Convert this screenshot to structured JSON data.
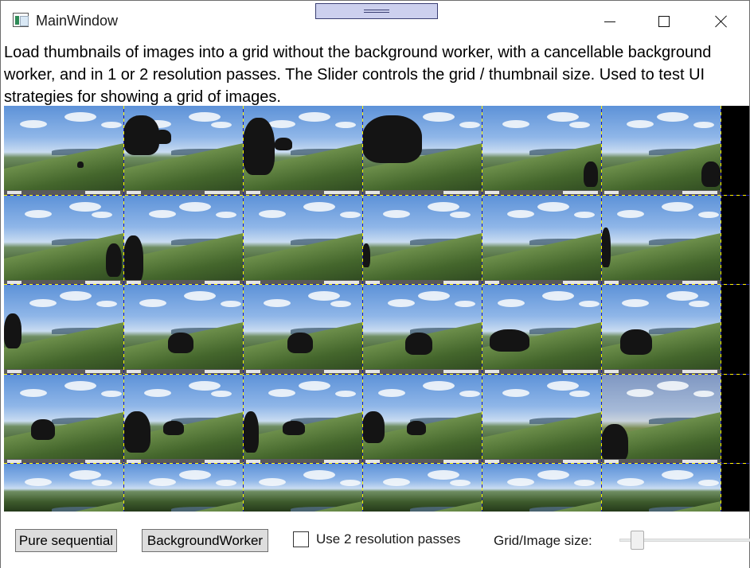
{
  "window": {
    "title": "MainWindow",
    "icon": "app-window-icon",
    "controls": [
      "minimize-icon",
      "maximize-icon",
      "close-icon"
    ]
  },
  "description": "Load thumbnails of images into a grid without the background worker, with a cancellable background worker, and in 1 or 2 resolution passes. The Slider controls the grid / thumbnail size. Used to test UI strategies for showing a grid of images.",
  "grid": {
    "columns": 6,
    "rows": 5,
    "separator_colors": [
      "#fff200",
      "#1a1aa8"
    ],
    "background_color": "#000000"
  },
  "toolbar": {
    "pure_sequential_label": "Pure sequential",
    "background_worker_label": "BackgroundWorker",
    "resolution_checkbox_label": "Use 2 resolution passes",
    "resolution_checkbox_checked": false,
    "slider_label": "Grid/Image size:",
    "slider_value_fraction": 0.1
  },
  "colors": {
    "button_face": "#dddddd",
    "button_border": "#707070",
    "drag_handle": "#ccd0ee"
  }
}
